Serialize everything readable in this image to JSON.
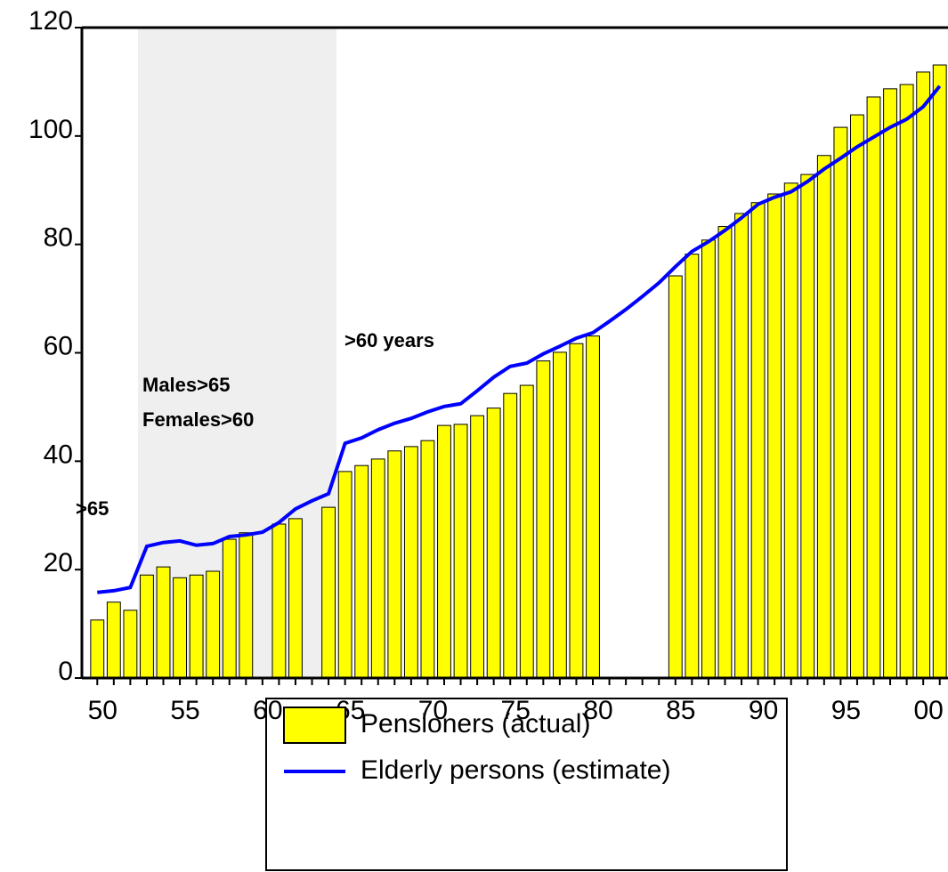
{
  "chart_data": {
    "type": "bar-line",
    "categories": [
      "50",
      null,
      null,
      null,
      null,
      "55",
      null,
      null,
      null,
      null,
      "60",
      null,
      null,
      null,
      null,
      "65",
      null,
      null,
      null,
      null,
      "70",
      null,
      null,
      null,
      null,
      "75",
      null,
      null,
      null,
      null,
      "80",
      null,
      null,
      null,
      null,
      "85",
      null,
      null,
      null,
      null,
      "90",
      null,
      null,
      null,
      null,
      "95",
      null,
      null,
      null,
      null,
      "00",
      null
    ],
    "series": [
      {
        "name": "Pensioners (actual)",
        "type": "bar",
        "color": "#ffff00",
        "values": [
          10.7,
          14.0,
          12.5,
          19.0,
          20.5,
          18.5,
          19.0,
          19.7,
          25.6,
          26.8,
          null,
          28.4,
          29.4,
          null,
          31.5,
          38.1,
          39.2,
          40.4,
          41.9,
          42.7,
          43.8,
          46.6,
          46.8,
          48.4,
          49.8,
          52.5,
          54.0,
          58.5,
          60.1,
          61.7,
          63.1,
          null,
          null,
          null,
          null,
          74.2,
          78.2,
          80.8,
          83.3,
          85.7,
          87.7,
          89.3,
          91.3,
          92.9,
          96.4,
          101.6,
          103.9,
          107.2,
          108.7,
          109.5,
          111.8,
          113.1
        ]
      },
      {
        "name": "Elderly persons (estimate)",
        "type": "line",
        "color": "#0000ff",
        "values": [
          15.8,
          16.1,
          16.7,
          24.3,
          25.0,
          25.3,
          24.5,
          24.8,
          26.1,
          26.4,
          26.9,
          28.7,
          31.2,
          32.7,
          34.0,
          43.3,
          44.3,
          45.8,
          47.0,
          47.9,
          49.1,
          50.1,
          50.6,
          53.0,
          55.5,
          57.5,
          58.1,
          59.8,
          61.2,
          62.7,
          63.7,
          65.8,
          68.0,
          70.4,
          72.9,
          75.9,
          78.7,
          80.5,
          82.6,
          84.9,
          87.4,
          88.7,
          89.7,
          91.6,
          93.9,
          95.9,
          98.0,
          99.8,
          101.6,
          103.1,
          105.4,
          109.2
        ]
      }
    ],
    "ylim": [
      0,
      120
    ],
    "yticks": [
      0,
      20,
      40,
      60,
      80,
      100,
      120
    ],
    "annotations": [
      ">65",
      "Males>65",
      "Females>60",
      ">60 years"
    ]
  }
}
